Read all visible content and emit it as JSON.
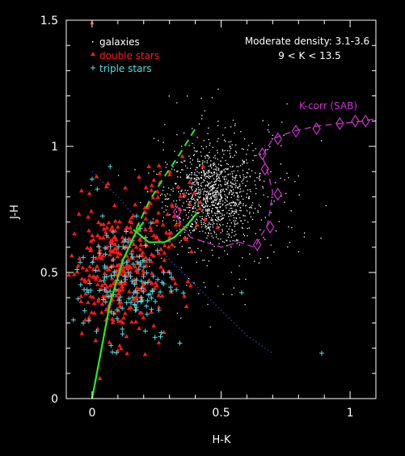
{
  "chart_data": {
    "type": "scatter",
    "title": "",
    "xlabel": "H-K",
    "ylabel": "J-H",
    "xlim": [
      -0.1,
      1.1
    ],
    "ylim": [
      0,
      1.5
    ],
    "xticks": [
      {
        "v": 0,
        "label": "0"
      },
      {
        "v": 0.5,
        "label": "0.5"
      },
      {
        "v": 1,
        "label": "1"
      }
    ],
    "yticks": [
      {
        "v": 0,
        "label": "0"
      },
      {
        "v": 0.5,
        "label": "0.5"
      },
      {
        "v": 1,
        "label": "1"
      },
      {
        "v": 1.5,
        "label": "1.5"
      }
    ],
    "minor_step": 0.1,
    "annotations": {
      "density_line1": "Moderate density: 3.1-3.6",
      "density_line2": "9 < K < 13.5",
      "kcorr_label": "K-corr (SAB)"
    },
    "legend": {
      "placement": "top-left",
      "entries": [
        {
          "name": "galaxies",
          "color": "#ffffff",
          "marker": "dot"
        },
        {
          "name": "double stars",
          "color": "#ff1a1a",
          "marker": "triangle"
        },
        {
          "name": "triple stars",
          "color": "#4fe0e0",
          "marker": "plus"
        }
      ]
    },
    "galaxies": {
      "color": "#ffffff",
      "clusters": [
        {
          "n": 900,
          "cx": 0.46,
          "cy": 0.8,
          "sx": 0.085,
          "sy": 0.095
        },
        {
          "n": 300,
          "cx": 0.52,
          "cy": 0.82,
          "sx": 0.14,
          "sy": 0.17
        }
      ]
    },
    "double_stars": {
      "color": "#ff1a1a",
      "clusters": [
        {
          "n": 330,
          "cx": 0.1,
          "cy": 0.5,
          "sx": 0.095,
          "sy": 0.13
        },
        {
          "n": 60,
          "cx": 0.25,
          "cy": 0.72,
          "sx": 0.09,
          "sy": 0.1
        }
      ],
      "extra_points": [
        [
          0.0,
          1.49
        ],
        [
          -0.09,
          0.49
        ],
        [
          0.22,
          0.92
        ],
        [
          0.35,
          0.96
        ],
        [
          0.03,
          0.08
        ]
      ]
    },
    "triple_stars": {
      "color": "#4fe0e0",
      "clusters": [
        {
          "n": 150,
          "cx": 0.13,
          "cy": 0.47,
          "sx": 0.1,
          "sy": 0.12
        }
      ],
      "extra_points": [
        [
          0.89,
          0.18
        ],
        [
          0.02,
          0.83
        ],
        [
          0.07,
          0.92
        ],
        [
          0.0,
          0.87
        ],
        [
          0.34,
          0.22
        ],
        [
          0.58,
          0.42
        ]
      ]
    },
    "giant_branch": {
      "color": "#22ee22",
      "points": [
        [
          0.0,
          0.0
        ],
        [
          0.07,
          0.38
        ],
        [
          0.12,
          0.55
        ],
        [
          0.17,
          0.66
        ],
        [
          0.2,
          0.7
        ]
      ]
    },
    "dwarf_branch": {
      "color": "#22ee22",
      "points": [
        [
          0.16,
          0.67
        ],
        [
          0.22,
          0.62
        ],
        [
          0.28,
          0.62
        ],
        [
          0.32,
          0.64
        ],
        [
          0.37,
          0.69
        ],
        [
          0.41,
          0.74
        ]
      ]
    },
    "dashed_line": {
      "color": "#22ee22",
      "points": [
        [
          0.17,
          0.67
        ],
        [
          0.22,
          0.78
        ],
        [
          0.28,
          0.88
        ],
        [
          0.34,
          0.97
        ],
        [
          0.4,
          1.07
        ]
      ]
    },
    "kcorr_track": {
      "color": "#cc33cc",
      "points": [
        [
          0.33,
          0.72
        ],
        [
          0.38,
          0.64
        ],
        [
          0.44,
          0.62
        ],
        [
          0.5,
          0.6
        ],
        [
          0.57,
          0.62
        ],
        [
          0.63,
          0.6
        ],
        [
          0.68,
          0.69
        ],
        [
          0.69,
          0.75
        ],
        [
          0.7,
          0.82
        ],
        [
          0.68,
          0.9
        ],
        [
          0.66,
          0.96
        ],
        [
          0.7,
          1.03
        ],
        [
          0.78,
          1.06
        ],
        [
          0.87,
          1.08
        ],
        [
          0.96,
          1.09
        ],
        [
          1.05,
          1.1
        ],
        [
          1.1,
          1.11
        ]
      ],
      "diamonds": [
        [
          0.64,
          0.61
        ],
        [
          0.69,
          0.68
        ],
        [
          0.72,
          0.81
        ],
        [
          0.67,
          0.91
        ],
        [
          0.66,
          0.97
        ],
        [
          0.72,
          1.03
        ],
        [
          0.79,
          1.06
        ],
        [
          0.87,
          1.07
        ],
        [
          0.96,
          1.09
        ],
        [
          1.02,
          1.1
        ],
        [
          1.06,
          1.1
        ],
        [
          0.33,
          0.74
        ]
      ]
    },
    "blue_line": {
      "color": "#3344cc",
      "points": [
        [
          0.0,
          0.9
        ],
        [
          0.1,
          0.8
        ],
        [
          0.2,
          0.68
        ],
        [
          0.3,
          0.55
        ],
        [
          0.4,
          0.45
        ],
        [
          0.5,
          0.35
        ],
        [
          0.6,
          0.25
        ],
        [
          0.7,
          0.18
        ]
      ]
    }
  }
}
